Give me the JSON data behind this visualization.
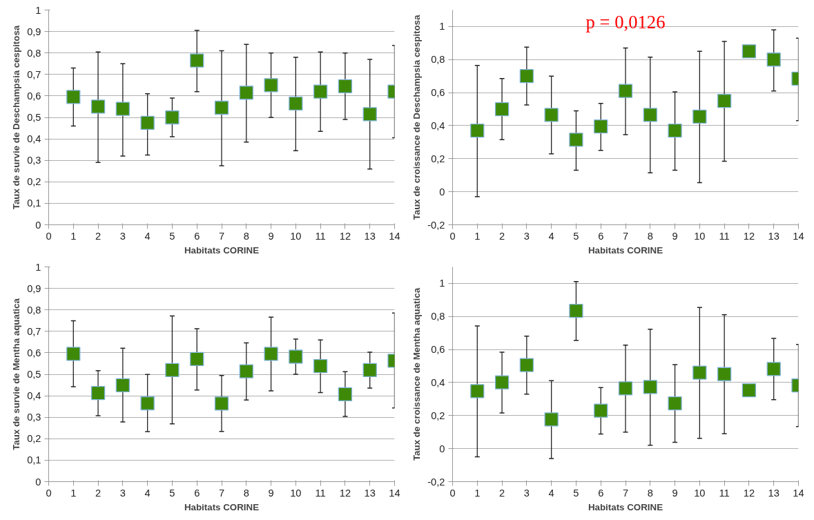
{
  "chart_data": [
    {
      "type": "scatter",
      "xlabel": "Habitats CORINE",
      "ylabel": "Taux de survie de Deschampsia cespitosa",
      "marker": "square",
      "grid": "y",
      "x": [
        1,
        2,
        3,
        4,
        5,
        6,
        7,
        8,
        9,
        10,
        11,
        12,
        13,
        14
      ],
      "series": [
        {
          "color": "#3e8a08",
          "values": [
            0.595,
            0.55,
            0.54,
            0.475,
            0.5,
            0.765,
            0.545,
            0.615,
            0.65,
            0.565,
            0.62,
            0.645,
            0.515,
            0.62
          ],
          "errors": [
            [
              0.46,
              0.73
            ],
            [
              0.29,
              0.805
            ],
            [
              0.32,
              0.75
            ],
            [
              0.325,
              0.61
            ],
            [
              0.41,
              0.59
            ],
            [
              0.62,
              0.905
            ],
            [
              0.275,
              0.81
            ],
            [
              0.385,
              0.84
            ],
            [
              0.5,
              0.8
            ],
            [
              0.345,
              0.78
            ],
            [
              0.435,
              0.805
            ],
            [
              0.49,
              0.8
            ],
            [
              0.26,
              0.77
            ],
            [
              0.405,
              0.835
            ]
          ]
        }
      ],
      "xlim": [
        0,
        14
      ],
      "xticks": [
        0,
        1,
        2,
        3,
        4,
        5,
        6,
        7,
        8,
        9,
        10,
        11,
        12,
        13,
        14
      ],
      "ylim": [
        0,
        1
      ],
      "yticks": [
        0,
        {
          "value": 0.1,
          "label": "0,1"
        },
        {
          "value": 0.2,
          "label": "0,2"
        },
        {
          "value": 0.3,
          "label": "0,3"
        },
        {
          "value": 0.4,
          "label": "0,4"
        },
        {
          "value": 0.5,
          "label": "0,5"
        },
        {
          "value": 0.6,
          "label": "0,6"
        },
        {
          "value": 0.7,
          "label": "0,7"
        },
        {
          "value": 0.8,
          "label": "0,8"
        },
        {
          "value": 0.9,
          "label": "0,9"
        },
        1
      ]
    },
    {
      "type": "scatter",
      "xlabel": "Habitats CORINE",
      "ylabel": "Taux de croissance de Deschampsia cespitosa",
      "marker": "square",
      "grid": "y",
      "annotations": [
        "p = 0,0126"
      ],
      "x": [
        1,
        2,
        3,
        4,
        5,
        6,
        7,
        8,
        9,
        10,
        11,
        12,
        13,
        14
      ],
      "series": [
        {
          "color": "#3e8a08",
          "values": [
            0.37,
            0.5,
            0.7,
            0.465,
            0.315,
            0.395,
            0.61,
            0.465,
            0.37,
            0.455,
            0.55,
            0.85,
            0.8,
            0.685
          ],
          "errors": [
            [
              -0.03,
              0.765
            ],
            [
              0.315,
              0.685
            ],
            [
              0.525,
              0.875
            ],
            [
              0.23,
              0.7
            ],
            [
              0.13,
              0.49
            ],
            [
              0.25,
              0.535
            ],
            [
              0.345,
              0.87
            ],
            [
              0.115,
              0.815
            ],
            [
              0.13,
              0.605
            ],
            [
              0.055,
              0.85
            ],
            [
              0.185,
              0.91
            ],
            null,
            [
              0.61,
              0.98
            ],
            [
              0.43,
              0.93
            ]
          ]
        }
      ],
      "xlim": [
        0,
        14
      ],
      "xticks": [
        0,
        1,
        2,
        3,
        4,
        5,
        6,
        7,
        8,
        9,
        10,
        11,
        12,
        13,
        14
      ],
      "ylim": [
        -0.2,
        1.1
      ],
      "yticks": [
        {
          "value": -0.2,
          "label": "-0,2"
        },
        0,
        {
          "value": 0.2,
          "label": "0,2"
        },
        {
          "value": 0.4,
          "label": "0,4"
        },
        {
          "value": 0.6,
          "label": "0,6"
        },
        {
          "value": 0.8,
          "label": "0,8"
        },
        1
      ]
    },
    {
      "type": "scatter",
      "xlabel": "Habitats CORINE",
      "ylabel": "Taux de survie de Mentha aquatica",
      "marker": "square",
      "grid": "y",
      "x": [
        1,
        2,
        3,
        4,
        5,
        6,
        7,
        8,
        9,
        10,
        11,
        12,
        13,
        14
      ],
      "series": [
        {
          "color": "#3e8a08",
          "values": [
            0.595,
            0.413,
            0.449,
            0.365,
            0.52,
            0.571,
            0.364,
            0.514,
            0.595,
            0.582,
            0.538,
            0.407,
            0.52,
            0.563
          ],
          "errors": [
            [
              0.442,
              0.749
            ],
            [
              0.307,
              0.517
            ],
            [
              0.278,
              0.621
            ],
            [
              0.233,
              0.499
            ],
            [
              0.269,
              0.772
            ],
            [
              0.427,
              0.712
            ],
            [
              0.234,
              0.494
            ],
            [
              0.38,
              0.646
            ],
            [
              0.423,
              0.766
            ],
            [
              0.5,
              0.664
            ],
            [
              0.415,
              0.66
            ],
            [
              0.304,
              0.512
            ],
            [
              0.436,
              0.603
            ],
            [
              0.343,
              0.785
            ]
          ]
        }
      ],
      "xlim": [
        0,
        14
      ],
      "xticks": [
        0,
        1,
        2,
        3,
        4,
        5,
        6,
        7,
        8,
        9,
        10,
        11,
        12,
        13,
        14
      ],
      "ylim": [
        0,
        1
      ],
      "yticks": [
        0,
        {
          "value": 0.1,
          "label": "0,1"
        },
        {
          "value": 0.2,
          "label": "0,2"
        },
        {
          "value": 0.3,
          "label": "0,3"
        },
        {
          "value": 0.4,
          "label": "0,4"
        },
        {
          "value": 0.5,
          "label": "0,5"
        },
        {
          "value": 0.6,
          "label": "0,6"
        },
        {
          "value": 0.7,
          "label": "0,7"
        },
        {
          "value": 0.8,
          "label": "0,8"
        },
        {
          "value": 0.9,
          "label": "0,9"
        },
        1
      ]
    },
    {
      "type": "scatter",
      "xlabel": "Habitats CORINE",
      "ylabel": "Taux de croissance de Mentha aquatica",
      "marker": "square",
      "grid": "y",
      "x": [
        1,
        2,
        3,
        4,
        5,
        6,
        7,
        8,
        9,
        10,
        11,
        12,
        13,
        14
      ],
      "series": [
        {
          "color": "#3e8a08",
          "values": [
            0.348,
            0.401,
            0.506,
            0.177,
            0.834,
            0.23,
            0.365,
            0.373,
            0.274,
            0.46,
            0.451,
            0.353,
            0.482,
            0.383
          ],
          "errors": [
            [
              -0.05,
              0.743
            ],
            [
              0.216,
              0.584
            ],
            [
              0.33,
              0.681
            ],
            [
              -0.06,
              0.411
            ],
            [
              0.655,
              1.011
            ],
            [
              0.088,
              0.37
            ],
            [
              0.1,
              0.627
            ],
            [
              0.02,
              0.723
            ],
            [
              0.038,
              0.508
            ],
            [
              0.062,
              0.854
            ],
            [
              0.09,
              0.811
            ],
            null,
            [
              0.296,
              0.667
            ],
            [
              0.133,
              0.631
            ]
          ]
        }
      ],
      "xlim": [
        0,
        14
      ],
      "xticks": [
        0,
        1,
        2,
        3,
        4,
        5,
        6,
        7,
        8,
        9,
        10,
        11,
        12,
        13,
        14
      ],
      "ylim": [
        -0.2,
        1.1
      ],
      "yticks": [
        {
          "value": -0.2,
          "label": "-0,2"
        },
        0,
        {
          "value": 0.2,
          "label": "0,2"
        },
        {
          "value": 0.4,
          "label": "0,4"
        },
        {
          "value": 0.6,
          "label": "0,6"
        },
        {
          "value": 0.8,
          "label": "0,8"
        },
        1
      ]
    }
  ]
}
